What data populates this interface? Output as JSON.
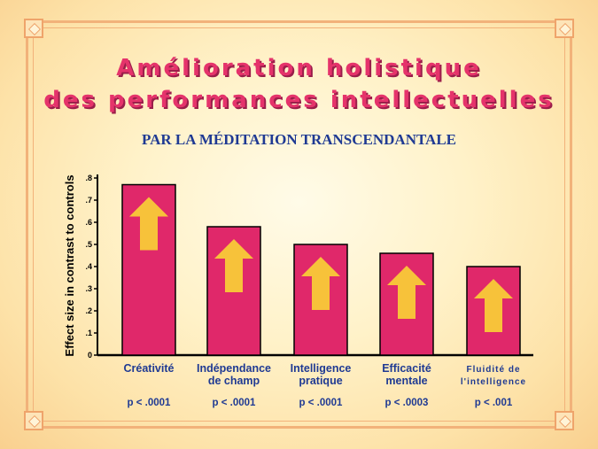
{
  "header": {
    "title_line1": "Amélioration holistique",
    "title_line2": "des performances intellectuelles",
    "subtitle": "PAR LA MÉDITATION TRANSCENDANTALE"
  },
  "colors": {
    "bar": "#e0286a",
    "arrow": "#f7c23a",
    "title": "#e5336b",
    "text": "#1f3a93"
  },
  "icons": {
    "bar_marker": "up-arrow-icon",
    "frame_corner": "ornament-icon"
  },
  "chart_data": {
    "type": "bar",
    "ylabel": "Effect size in contrast to controls",
    "ylim": [
      0,
      0.8
    ],
    "y_ticks": [
      {
        "value": 0,
        "label": "0"
      },
      {
        "value": 0.1,
        "label": ".1"
      },
      {
        "value": 0.2,
        "label": ".2"
      },
      {
        "value": 0.3,
        "label": ".3"
      },
      {
        "value": 0.4,
        "label": ".4"
      },
      {
        "value": 0.5,
        "label": ".5"
      },
      {
        "value": 0.6,
        "label": ".6"
      },
      {
        "value": 0.7,
        "label": ".7"
      },
      {
        "value": 0.8,
        "label": ".8"
      }
    ],
    "grid": false,
    "categories": [
      [
        "Créativité"
      ],
      [
        "Indépendance",
        "de champ"
      ],
      [
        "Intelligence",
        "pratique"
      ],
      [
        "Efficacité",
        "mentale"
      ],
      [
        "Fluidité de",
        "l'intelligence"
      ]
    ],
    "values": [
      0.77,
      0.58,
      0.5,
      0.46,
      0.4
    ],
    "p_values": [
      "p < .0001",
      "p < .0001",
      "p < .0001",
      "p < .0003",
      "p < .001"
    ]
  }
}
